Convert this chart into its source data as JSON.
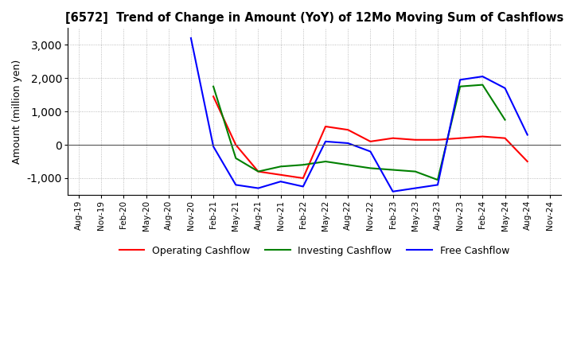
{
  "title": "[6572]  Trend of Change in Amount (YoY) of 12Mo Moving Sum of Cashflows",
  "ylabel": "Amount (million yen)",
  "ylim": [
    -1500,
    3500
  ],
  "yticks": [
    -1000,
    0,
    1000,
    2000,
    3000
  ],
  "background_color": "#ffffff",
  "grid_color": "#aaaaaa",
  "dates": [
    "Aug-19",
    "Nov-19",
    "Feb-20",
    "May-20",
    "Aug-20",
    "Nov-20",
    "Feb-21",
    "May-21",
    "Aug-21",
    "Nov-21",
    "Feb-22",
    "May-22",
    "Aug-22",
    "Nov-22",
    "Feb-23",
    "May-23",
    "Aug-23",
    "Nov-23",
    "Feb-24",
    "May-24",
    "Aug-24",
    "Nov-24"
  ],
  "operating": [
    null,
    null,
    null,
    null,
    null,
    null,
    1450,
    0,
    -800,
    -900,
    -1000,
    550,
    450,
    100,
    200,
    150,
    150,
    200,
    250,
    200,
    -500,
    null
  ],
  "investing": [
    null,
    null,
    null,
    null,
    null,
    null,
    1750,
    -400,
    -800,
    -650,
    -600,
    -500,
    -600,
    -700,
    -750,
    -800,
    -1050,
    1750,
    1800,
    750,
    null,
    null
  ],
  "free": [
    null,
    null,
    null,
    null,
    null,
    3200,
    -50,
    -1200,
    -1300,
    -1100,
    -1250,
    100,
    50,
    -200,
    -1400,
    -1300,
    -1200,
    1950,
    2050,
    1700,
    300,
    null
  ],
  "operating_color": "#ff0000",
  "investing_color": "#008000",
  "free_color": "#0000ff"
}
